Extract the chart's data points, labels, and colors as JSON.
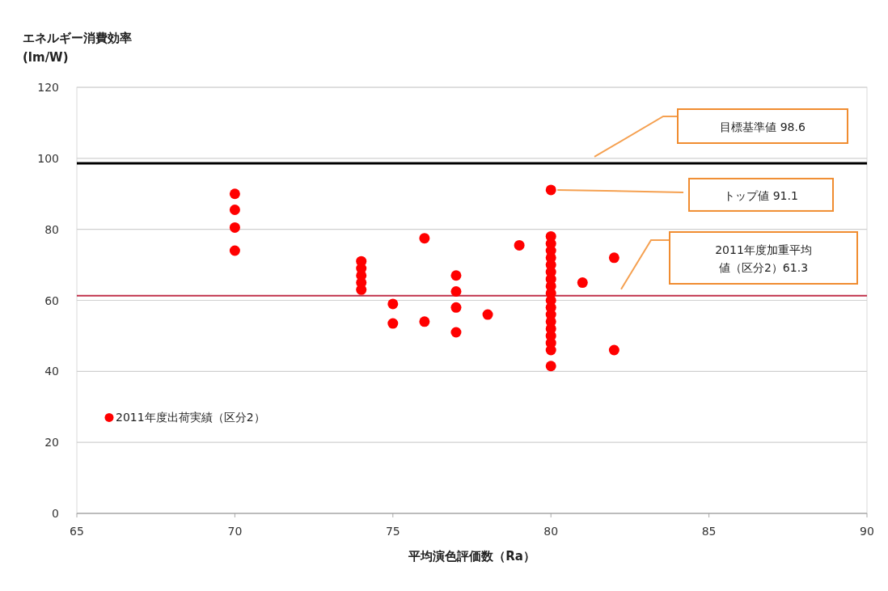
{
  "chart_data": {
    "type": "scatter",
    "xlabel": "平均演色評価数（Ra）",
    "ylabel": "エネルギー消費効率\n(lm/W)",
    "xlim": [
      65,
      90
    ],
    "xticks": [
      65,
      70,
      75,
      80,
      85,
      90
    ],
    "ylim": [
      0,
      120
    ],
    "yticks": [
      0,
      20,
      40,
      60,
      80,
      100,
      120
    ],
    "grid": "y",
    "legend": "bottom left",
    "marker": "circle",
    "series": [
      {
        "name": "2011年度出荷実績（区分2）",
        "color": "#ff0000",
        "x": [
          70,
          70,
          70,
          70,
          74,
          74,
          74,
          74,
          74,
          75,
          75,
          76,
          76,
          77,
          77,
          77,
          77,
          78,
          79,
          80,
          80,
          80,
          80,
          80,
          80,
          80,
          80,
          80,
          80,
          80,
          80,
          80,
          80,
          80,
          80,
          80,
          80,
          80,
          81,
          82,
          82
        ],
        "values": [
          90,
          85.5,
          80.5,
          74,
          71,
          69,
          67,
          65,
          63,
          59,
          53.5,
          77.5,
          54,
          67,
          62.5,
          58,
          51,
          56,
          75.5,
          91.1,
          78,
          76,
          74,
          72,
          70,
          68,
          66,
          64,
          62,
          60,
          58,
          56,
          54,
          52,
          50,
          48,
          46,
          41.5,
          65,
          72,
          46
        ]
      }
    ],
    "ref_lines": [
      {
        "axis": "y",
        "value": 98.6,
        "label": "目標基準値  98.6",
        "color": "#000000"
      },
      {
        "axis": "y",
        "value": 61.3,
        "label": "2011年度加重平均値（区分2）61.3",
        "color": "#c0304a"
      }
    ],
    "annotations": [
      "トップ値  91.1"
    ]
  }
}
